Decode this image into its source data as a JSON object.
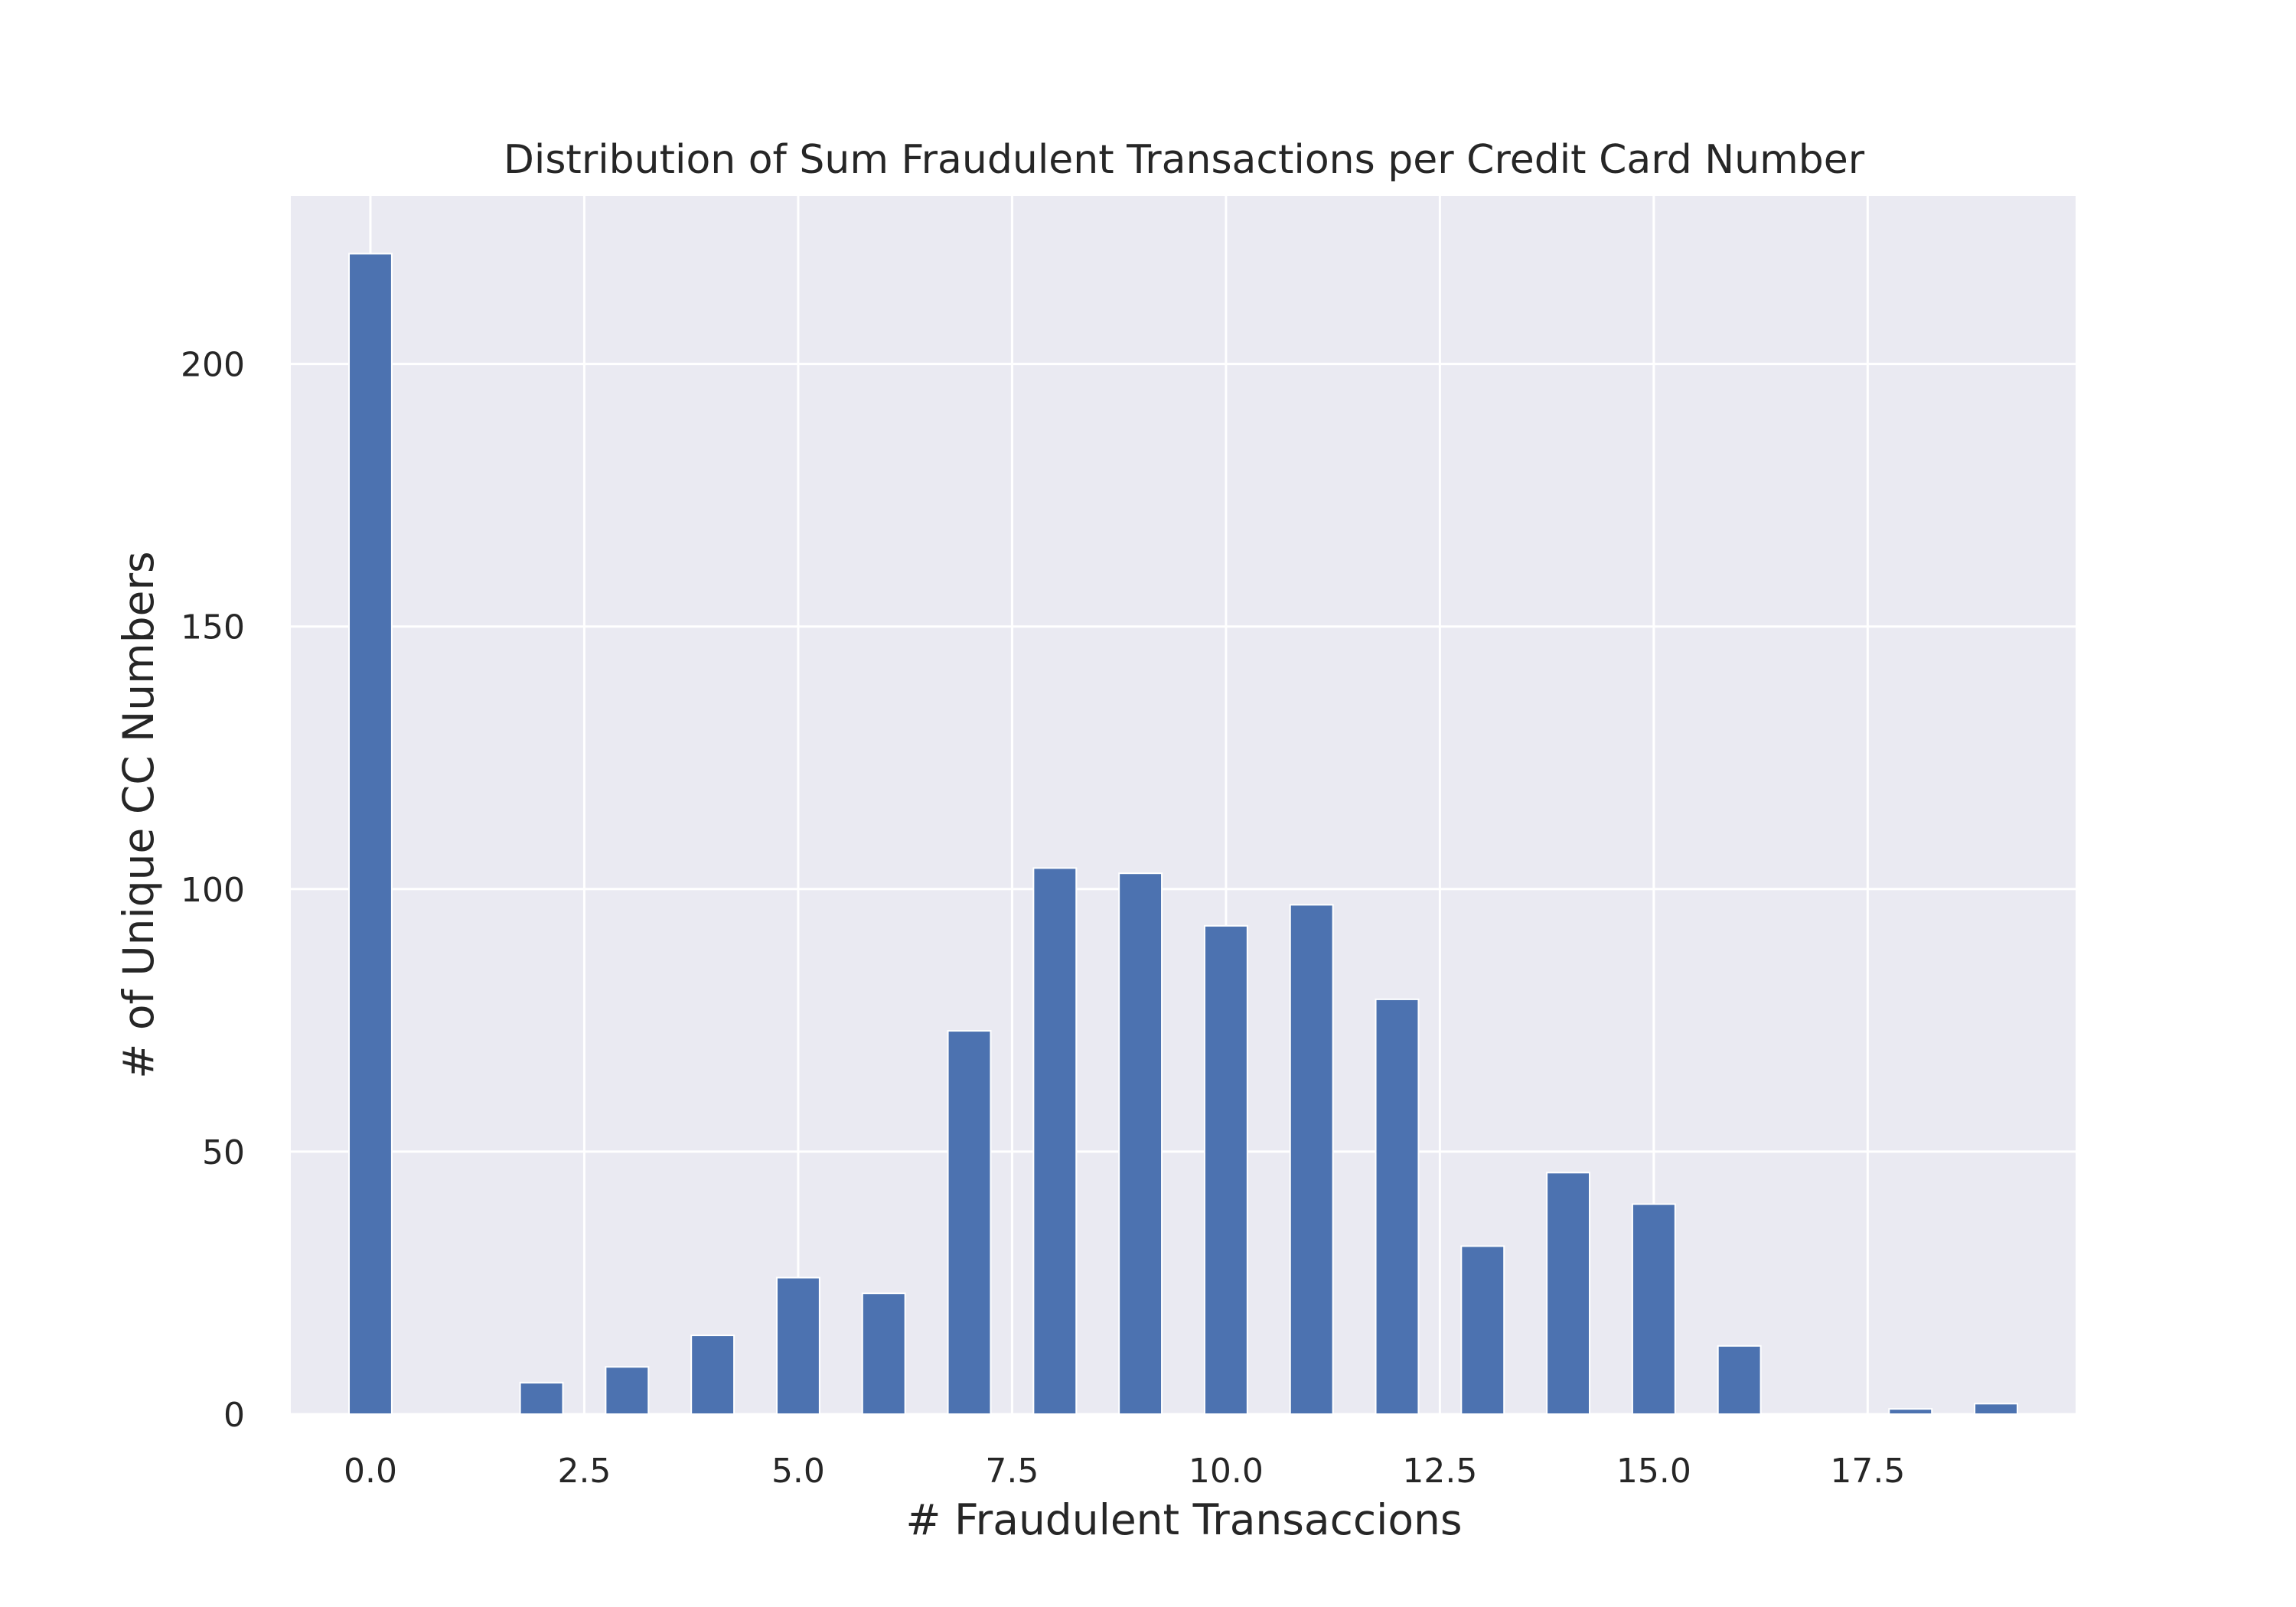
{
  "chart_data": {
    "type": "bar",
    "title": "Distribution of Sum Fraudulent Transactions per Credit Card Number",
    "xlabel": "# Fraudulent Transaccions",
    "ylabel": "# of Unique CC Numbers",
    "xlim": [
      -0.93,
      19.93
    ],
    "ylim": [
      0,
      232
    ],
    "xticks": [
      0.0,
      2.5,
      5.0,
      7.5,
      10.0,
      12.5,
      15.0,
      17.5
    ],
    "xtick_labels": [
      "0.0",
      "2.5",
      "5.0",
      "7.5",
      "10.0",
      "12.5",
      "15.0",
      "17.5"
    ],
    "yticks": [
      0,
      50,
      100,
      150,
      200
    ],
    "ytick_labels": [
      "0",
      "50",
      "100",
      "150",
      "200"
    ],
    "grid": true,
    "bar_color": "#4c72b0",
    "background_color": "#eaeaf2",
    "x": [
      0,
      2,
      3,
      4,
      5,
      6,
      7,
      8,
      9,
      10,
      11,
      12,
      13,
      14,
      15,
      16,
      18,
      19
    ],
    "values": [
      221,
      6,
      9,
      15,
      26,
      23,
      73,
      104,
      103,
      93,
      97,
      79,
      32,
      46,
      40,
      13,
      1,
      2
    ]
  }
}
